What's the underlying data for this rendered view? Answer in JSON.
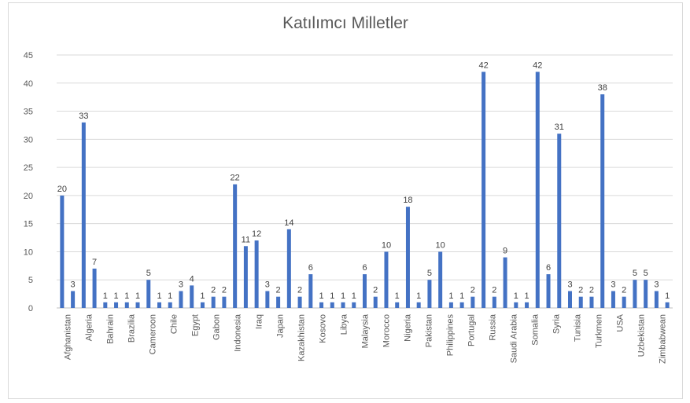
{
  "chart_data": {
    "type": "bar",
    "title": "Katılımcı Milletler",
    "ylim": [
      0,
      45
    ],
    "yticks": [
      0,
      5,
      10,
      15,
      20,
      25,
      30,
      35,
      40,
      45
    ],
    "grid": true,
    "bar_color": "#4472c4",
    "x_labels": [
      "Afghanistan",
      "Algeria",
      "Bahrain",
      "Brazilia",
      "Cameroon",
      "Chile",
      "Egypt",
      "Gabon",
      "Indonesia",
      "Iraq",
      "Japan",
      "Kazakhistan",
      "Kosovo",
      "Libya",
      "Malaysia",
      "Morocco",
      "Nigeria",
      "Pakistan",
      "Philippines",
      "Portugal",
      "Russia",
      "Saudi Arabia",
      "Somalia",
      "Syria",
      "Tunisia",
      "Turkmen",
      "USA",
      "Uzbekistan",
      "Zimbabwean"
    ],
    "values": [
      20,
      3,
      33,
      7,
      1,
      1,
      1,
      1,
      5,
      1,
      1,
      3,
      4,
      1,
      2,
      2,
      22,
      11,
      12,
      3,
      2,
      14,
      2,
      6,
      1,
      1,
      1,
      1,
      6,
      2,
      10,
      1,
      18,
      1,
      5,
      10,
      1,
      1,
      2,
      42,
      2,
      9,
      1,
      1,
      42,
      6,
      31,
      3,
      2,
      2,
      38,
      3,
      2,
      5,
      5,
      3,
      1
    ]
  }
}
